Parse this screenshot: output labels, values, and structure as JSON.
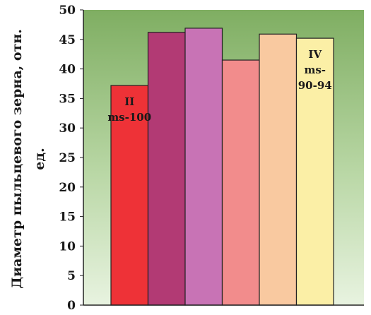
{
  "chart_data": {
    "type": "bar",
    "title": "",
    "xlabel": "",
    "ylabel_lines": [
      "Диаметр пыльцевого зерна, отн.",
      "ед."
    ],
    "ylim": [
      0,
      50
    ],
    "yticks": [
      "0",
      "5",
      "10",
      "15",
      "20",
      "25",
      "30",
      "35",
      "40",
      "45",
      "50"
    ],
    "grid": false,
    "plot_background": "green gradient (top dark green to bottom pale green)",
    "values": [
      37.2,
      46.2,
      46.9,
      41.5,
      45.9,
      45.2
    ],
    "colors": [
      "#ee3237",
      "#b23a74",
      "#c873b5",
      "#f28c8c",
      "#f9c9a0",
      "#fbefa6"
    ],
    "annotations": [
      {
        "bar_index": 0,
        "lines": [
          "II",
          "ms-100"
        ]
      },
      {
        "bar_index": 5,
        "lines": [
          "IV",
          "ms-",
          "90-94"
        ]
      }
    ]
  }
}
